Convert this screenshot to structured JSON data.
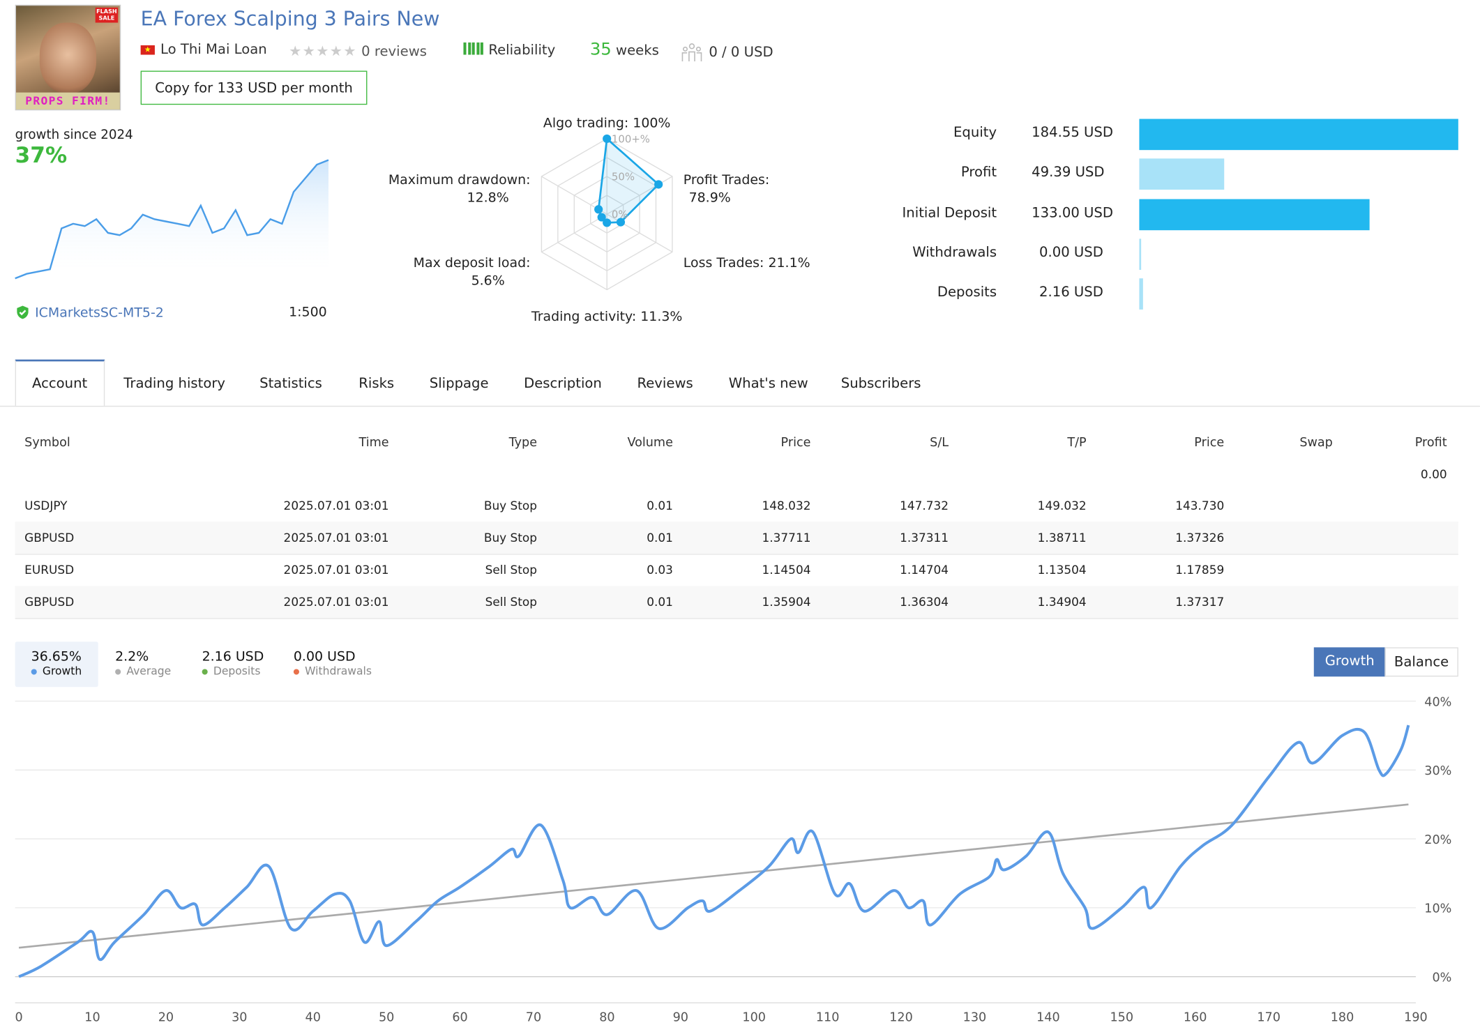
{
  "header": {
    "title": "EA Forex Scalping 3 Pairs New",
    "author": "Lo Thi Mai Loan",
    "reviews": "0 reviews",
    "rating": 0,
    "reliability_label": "Reliability",
    "weeks_value": "35",
    "weeks_label": "weeks",
    "subscribers": "0 / 0 USD",
    "copy_button": "Copy for 133 USD per month",
    "avatar_text": "PROPS FIRM!",
    "avatar_badge": "FLASH SALE"
  },
  "summary": {
    "growth_label": "growth since 2024",
    "growth_value": "37%",
    "broker": "ICMarketsSC-MT5-2",
    "leverage": "1:500",
    "sparkline": [
      0,
      1,
      1.5,
      2,
      11,
      12,
      11.5,
      13,
      10,
      9.5,
      11,
      14,
      13,
      12.5,
      12,
      11.5,
      16,
      10,
      11,
      15,
      9.5,
      10,
      13,
      12,
      19,
      22,
      25,
      26
    ]
  },
  "radar": {
    "scale_labels": [
      "0%",
      "50%",
      "100+%"
    ],
    "axes": [
      {
        "label": "Algo trading: 100%",
        "value": 100
      },
      {
        "label": "Profit Trades: 78.9%",
        "value": 78.9
      },
      {
        "label": "Loss Trades: 21.1%",
        "value": 21.1
      },
      {
        "label": "Trading activity: 11.3%",
        "value": 11.3
      },
      {
        "label": "Max deposit load: 5.6%",
        "value": 5.6
      },
      {
        "label": "Maximum drawdown: 12.8%",
        "value": 12.8
      }
    ],
    "color": "#1aa6e6"
  },
  "balance": {
    "items": [
      {
        "label": "Equity",
        "value": "184.55 USD",
        "amount": 184.55,
        "color": "#22b8ef"
      },
      {
        "label": "Profit",
        "value": "49.39 USD",
        "amount": 49.39,
        "color": "#a8e2f8"
      },
      {
        "label": "Initial Deposit",
        "value": "133.00 USD",
        "amount": 133.0,
        "color": "#22b8ef"
      },
      {
        "label": "Withdrawals",
        "value": "0.00 USD",
        "amount": 0,
        "color": "#a8e2f8"
      },
      {
        "label": "Deposits",
        "value": "2.16 USD",
        "amount": 2.16,
        "color": "#a8e2f8"
      }
    ]
  },
  "tabs": [
    {
      "label": "Account",
      "active": true
    },
    {
      "label": "Trading history"
    },
    {
      "label": "Statistics"
    },
    {
      "label": "Risks"
    },
    {
      "label": "Slippage"
    },
    {
      "label": "Description"
    },
    {
      "label": "Reviews"
    },
    {
      "label": "What's new"
    },
    {
      "label": "Subscribers"
    }
  ],
  "table": {
    "headers": [
      "Symbol",
      "Time",
      "Type",
      "Volume",
      "Price",
      "S/L",
      "T/P",
      "Price",
      "Swap",
      "Profit"
    ],
    "total_profit": "0.00",
    "rows": [
      [
        "USDJPY",
        "2025.07.01 03:01",
        "Buy Stop",
        "0.01",
        "148.032",
        "147.732",
        "149.032",
        "143.730",
        "",
        ""
      ],
      [
        "GBPUSD",
        "2025.07.01 03:01",
        "Buy Stop",
        "0.01",
        "1.37711",
        "1.37311",
        "1.38711",
        "1.37326",
        "",
        ""
      ],
      [
        "EURUSD",
        "2025.07.01 03:01",
        "Sell Stop",
        "0.03",
        "1.14504",
        "1.14704",
        "1.13504",
        "1.17859",
        "",
        ""
      ],
      [
        "GBPUSD",
        "2025.07.01 03:01",
        "Sell Stop",
        "0.01",
        "1.35904",
        "1.36304",
        "1.34904",
        "1.37317",
        "",
        ""
      ]
    ]
  },
  "stats": [
    {
      "value": "36.65%",
      "label": "Growth",
      "color": "#5b9be6",
      "active": true
    },
    {
      "value": "2.2%",
      "label": "Average",
      "color": "#b0b0b0"
    },
    {
      "value": "2.16 USD",
      "label": "Deposits",
      "color": "#6ab04c"
    },
    {
      "value": "0.00 USD",
      "label": "Withdrawals",
      "color": "#e8704a"
    }
  ],
  "toggle": {
    "growth": "Growth",
    "balance": "Balance",
    "active": "Growth",
    "active_color": "#4a76b8"
  },
  "chart_data": {
    "type": "line",
    "xlim": [
      0,
      190
    ],
    "ylim": [
      0,
      40
    ],
    "grid": true,
    "xticks": [
      "0",
      "10",
      "20",
      "30",
      "40",
      "50",
      "60",
      "70",
      "80",
      "90",
      "100",
      "110",
      "120",
      "130",
      "140",
      "150",
      "160",
      "170",
      "180",
      "190"
    ],
    "yticks": [
      "0%",
      "10%",
      "20%",
      "30%",
      "40%"
    ],
    "series": [
      {
        "name": "Growth",
        "color": "#5b9be6",
        "points": [
          [
            0,
            0
          ],
          [
            3,
            1.5
          ],
          [
            8,
            5
          ],
          [
            10,
            6.5
          ],
          [
            11,
            2.5
          ],
          [
            13,
            5
          ],
          [
            17,
            9
          ],
          [
            20,
            12.5
          ],
          [
            22,
            10
          ],
          [
            24,
            10.5
          ],
          [
            25,
            7.5
          ],
          [
            28,
            10
          ],
          [
            31,
            13
          ],
          [
            34,
            16
          ],
          [
            37,
            7
          ],
          [
            40,
            9.5
          ],
          [
            43,
            12
          ],
          [
            45,
            11
          ],
          [
            47,
            5
          ],
          [
            49,
            8
          ],
          [
            50,
            4.5
          ],
          [
            54,
            8
          ],
          [
            57,
            11
          ],
          [
            60,
            13
          ],
          [
            64,
            16
          ],
          [
            67,
            18.5
          ],
          [
            68,
            17.5
          ],
          [
            71,
            22
          ],
          [
            74,
            14
          ],
          [
            75,
            10
          ],
          [
            78,
            11.5
          ],
          [
            80,
            9
          ],
          [
            84,
            12.5
          ],
          [
            87,
            7
          ],
          [
            91,
            10
          ],
          [
            93,
            11
          ],
          [
            94,
            9.5
          ],
          [
            98,
            12.5
          ],
          [
            102,
            16
          ],
          [
            105,
            20
          ],
          [
            106,
            18
          ],
          [
            108,
            21
          ],
          [
            111,
            12
          ],
          [
            113,
            13.5
          ],
          [
            115,
            9.5
          ],
          [
            119,
            12.5
          ],
          [
            121,
            10
          ],
          [
            123,
            11
          ],
          [
            124,
            7.5
          ],
          [
            128,
            12
          ],
          [
            132,
            14.5
          ],
          [
            133,
            17
          ],
          [
            134,
            15.5
          ],
          [
            137,
            17.5
          ],
          [
            140,
            21
          ],
          [
            142,
            15
          ],
          [
            145,
            10
          ],
          [
            146,
            7
          ],
          [
            150,
            10
          ],
          [
            153,
            13
          ],
          [
            154,
            10
          ],
          [
            158,
            16
          ],
          [
            161,
            19
          ],
          [
            165,
            22
          ],
          [
            170,
            29
          ],
          [
            174,
            34
          ],
          [
            176,
            31
          ],
          [
            180,
            35
          ],
          [
            183,
            35.5
          ],
          [
            185,
            30
          ],
          [
            186,
            29.5
          ],
          [
            188,
            33
          ],
          [
            189,
            36.5
          ]
        ]
      },
      {
        "name": "Average",
        "color": "#aaaaaa",
        "points": [
          [
            0,
            4.2
          ],
          [
            189,
            25
          ]
        ]
      }
    ]
  }
}
